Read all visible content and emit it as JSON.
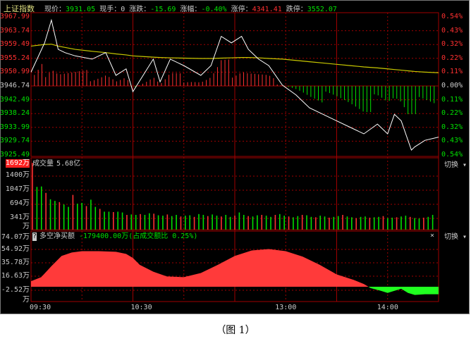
{
  "header": {
    "name": "上证指数",
    "price_label": "现价：",
    "price": "3931.05",
    "hand_label": "现手：",
    "hand": "0",
    "chg_label": "涨跌：",
    "chg": "-15.69",
    "pct_label": "涨幅：",
    "pct": "-0.40%",
    "up_label": "涨停：",
    "up": "4341.41",
    "down_label": "跌停：",
    "down": "3552.07"
  },
  "colors": {
    "up": "#ff3030",
    "down": "#00e000",
    "grid": "#a00000",
    "price_line": "#ffffff",
    "avg_line": "#c8c800"
  },
  "chart_data": [
    {
      "type": "line",
      "panel": "price",
      "ylim": [
        3925.49,
        3967.99
      ],
      "prev_close": 3946.74,
      "left_ticks": [
        "3967.99",
        "3963.74",
        "3959.49",
        "3955.24",
        "3950.99",
        "3946.74",
        "3942.49",
        "3938.24",
        "3933.99",
        "3929.74",
        "3925.49"
      ],
      "right_ticks": [
        "0.54%",
        "0.43%",
        "0.32%",
        "0.22%",
        "0.11%",
        "0.00%",
        "0.11%",
        "0.22%",
        "0.32%",
        "0.43%",
        "0.54%"
      ],
      "x_minutes": [
        0,
        8,
        12,
        16,
        20,
        26,
        36,
        44,
        50,
        56,
        60,
        66,
        72,
        76,
        82,
        90,
        100,
        106,
        112,
        118,
        124,
        128,
        134,
        140,
        148,
        156,
        164,
        172,
        180,
        188,
        196,
        204,
        210,
        214,
        218,
        224,
        226,
        232,
        240
      ],
      "price": [
        3951,
        3960,
        3967,
        3958,
        3957,
        3956,
        3955,
        3957,
        3950,
        3952,
        3945,
        3950,
        3955,
        3948,
        3955,
        3953,
        3950,
        3953,
        3962,
        3960,
        3962,
        3958,
        3955,
        3953,
        3947,
        3944,
        3940,
        3938,
        3936,
        3934,
        3932,
        3935,
        3932,
        3938,
        3936,
        3927,
        3928,
        3930,
        3931
      ],
      "avg": [
        3959,
        3959.5,
        3959.6,
        3959,
        3958.6,
        3958,
        3957.4,
        3957,
        3956.6,
        3956.3,
        3956,
        3955.8,
        3955.6,
        3955.5,
        3955.4,
        3955.3,
        3955.2,
        3955.2,
        3955.3,
        3955.4,
        3955.5,
        3955.5,
        3955.4,
        3955.2,
        3955,
        3954.6,
        3954.2,
        3953.8,
        3953.4,
        3953,
        3952.6,
        3952.3,
        3952,
        3951.8,
        3951.6,
        3951.3,
        3951.2,
        3951,
        3950.8
      ]
    },
    {
      "type": "bar",
      "panel": "volume",
      "title": "成交量",
      "total": "5.68亿",
      "ticks": [
        "1692万",
        "1400万",
        "1047万",
        "694万",
        "341万",
        "万"
      ],
      "ylim": [
        0,
        1692
      ],
      "values": [
        1600,
        1000,
        1010,
        850,
        690,
        650,
        620,
        560,
        500,
        800,
        580,
        600,
        520,
        680,
        500,
        450,
        380,
        380,
        370,
        380,
        360,
        300,
        310,
        300,
        320,
        300,
        340,
        330,
        290,
        280,
        310,
        270,
        300,
        260,
        280,
        290,
        250,
        320,
        300,
        270,
        310,
        280,
        260,
        300,
        250,
        280,
        360,
        300,
        270,
        260,
        290,
        300,
        280,
        250,
        300,
        320,
        280,
        260,
        240,
        270,
        300,
        290,
        250,
        240,
        280,
        260,
        230,
        250,
        270,
        300,
        260,
        240,
        220,
        250,
        260,
        230,
        240,
        250,
        270,
        220,
        230,
        240,
        260,
        280,
        250,
        220,
        210,
        230,
        250,
        300
      ]
    },
    {
      "type": "area",
      "panel": "net_buy",
      "title": "多空净买额",
      "value": "-179400.00万(占成交额比 0.25%)",
      "ticks": [
        "74.07万",
        "54.92万",
        "35.78万",
        "16.63万",
        "-2.52万",
        "万"
      ],
      "ylim": [
        -21.67,
        74.07
      ],
      "x_minutes": [
        0,
        6,
        12,
        18,
        24,
        30,
        40,
        50,
        56,
        60,
        64,
        72,
        80,
        90,
        100,
        110,
        120,
        130,
        140,
        150,
        160,
        170,
        180,
        190,
        196,
        200,
        206,
        210,
        214,
        218,
        222,
        226,
        232,
        240
      ],
      "values": [
        8,
        14,
        30,
        45,
        50,
        52,
        52,
        51,
        48,
        42,
        32,
        22,
        15,
        14,
        20,
        32,
        45,
        53,
        55,
        52,
        44,
        32,
        18,
        10,
        4,
        -2,
        -6,
        -9,
        -6,
        -3,
        -9,
        -12,
        -11,
        -11
      ]
    }
  ],
  "time_ticks": [
    "09:30",
    "10:30",
    "13:00",
    "14:00"
  ],
  "switch_label": "切换",
  "close_label": "×",
  "caption": "（图 1）"
}
